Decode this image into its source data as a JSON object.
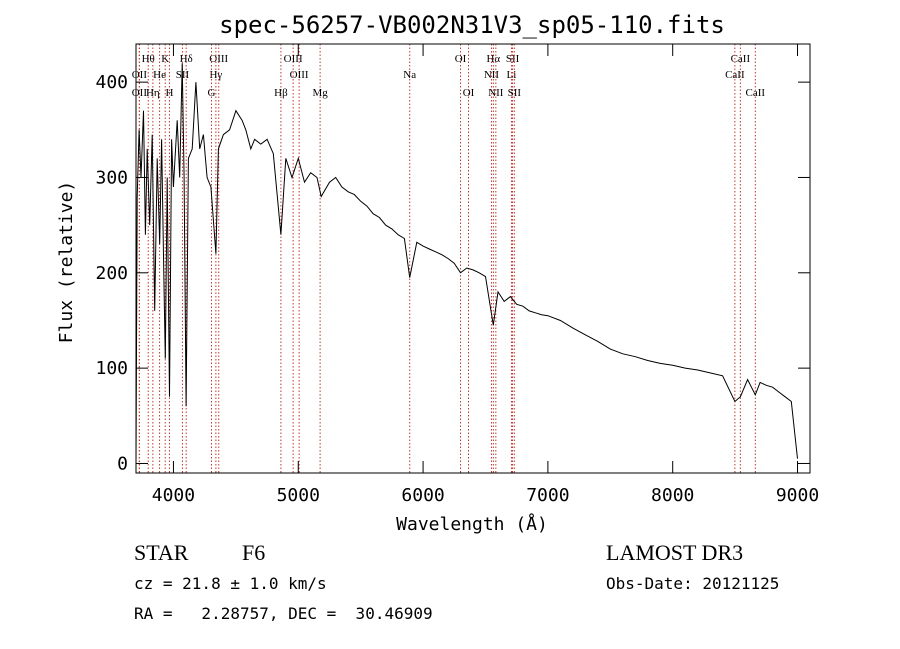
{
  "chart_data": {
    "type": "line",
    "title": "spec-56257-VB002N31V3_sp05-110.fits",
    "xlabel": "Wavelength (Å)",
    "ylabel": "Flux (relative)",
    "xlim": [
      3700,
      9100
    ],
    "ylim": [
      -10,
      440
    ],
    "xticks": [
      4000,
      5000,
      6000,
      7000,
      8000,
      9000
    ],
    "yticks": [
      0,
      100,
      200,
      300,
      400
    ],
    "grid": false,
    "series": [
      {
        "name": "flux",
        "points": [
          [
            3700,
            0
          ],
          [
            3710,
            280
          ],
          [
            3725,
            350
          ],
          [
            3740,
            300
          ],
          [
            3760,
            370
          ],
          [
            3775,
            240
          ],
          [
            3790,
            330
          ],
          [
            3810,
            250
          ],
          [
            3830,
            345
          ],
          [
            3850,
            160
          ],
          [
            3870,
            320
          ],
          [
            3890,
            230
          ],
          [
            3905,
            340
          ],
          [
            3925,
            180
          ],
          [
            3935,
            110
          ],
          [
            3950,
            300
          ],
          [
            3968,
            70
          ],
          [
            3985,
            340
          ],
          [
            4000,
            290
          ],
          [
            4030,
            360
          ],
          [
            4050,
            300
          ],
          [
            4070,
            420
          ],
          [
            4085,
            300
          ],
          [
            4101,
            60
          ],
          [
            4120,
            320
          ],
          [
            4150,
            330
          ],
          [
            4180,
            400
          ],
          [
            4210,
            330
          ],
          [
            4240,
            345
          ],
          [
            4270,
            300
          ],
          [
            4300,
            290
          ],
          [
            4340,
            220
          ],
          [
            4360,
            330
          ],
          [
            4400,
            345
          ],
          [
            4450,
            350
          ],
          [
            4500,
            370
          ],
          [
            4550,
            360
          ],
          [
            4580,
            350
          ],
          [
            4620,
            330
          ],
          [
            4650,
            340
          ],
          [
            4700,
            335
          ],
          [
            4750,
            340
          ],
          [
            4800,
            325
          ],
          [
            4861,
            240
          ],
          [
            4900,
            320
          ],
          [
            4950,
            300
          ],
          [
            5000,
            320
          ],
          [
            5050,
            295
          ],
          [
            5100,
            305
          ],
          [
            5150,
            300
          ],
          [
            5184,
            280
          ],
          [
            5250,
            295
          ],
          [
            5300,
            300
          ],
          [
            5350,
            290
          ],
          [
            5400,
            285
          ],
          [
            5450,
            282
          ],
          [
            5500,
            275
          ],
          [
            5550,
            270
          ],
          [
            5600,
            262
          ],
          [
            5650,
            258
          ],
          [
            5700,
            250
          ],
          [
            5750,
            246
          ],
          [
            5800,
            240
          ],
          [
            5850,
            236
          ],
          [
            5893,
            195
          ],
          [
            5950,
            232
          ],
          [
            6000,
            228
          ],
          [
            6050,
            225
          ],
          [
            6100,
            222
          ],
          [
            6150,
            219
          ],
          [
            6200,
            215
          ],
          [
            6250,
            210
          ],
          [
            6300,
            200
          ],
          [
            6350,
            205
          ],
          [
            6400,
            203
          ],
          [
            6450,
            200
          ],
          [
            6500,
            196
          ],
          [
            6563,
            145
          ],
          [
            6600,
            180
          ],
          [
            6650,
            170
          ],
          [
            6700,
            175
          ],
          [
            6750,
            167
          ],
          [
            6800,
            165
          ],
          [
            6850,
            160
          ],
          [
            6900,
            158
          ],
          [
            6950,
            156
          ],
          [
            7000,
            155
          ],
          [
            7100,
            150
          ],
          [
            7200,
            142
          ],
          [
            7300,
            135
          ],
          [
            7400,
            128
          ],
          [
            7500,
            120
          ],
          [
            7600,
            115
          ],
          [
            7700,
            112
          ],
          [
            7800,
            108
          ],
          [
            7900,
            105
          ],
          [
            8000,
            103
          ],
          [
            8100,
            100
          ],
          [
            8200,
            98
          ],
          [
            8300,
            95
          ],
          [
            8400,
            92
          ],
          [
            8498,
            65
          ],
          [
            8542,
            70
          ],
          [
            8600,
            88
          ],
          [
            8662,
            72
          ],
          [
            8700,
            85
          ],
          [
            8750,
            82
          ],
          [
            8800,
            80
          ],
          [
            8850,
            75
          ],
          [
            8900,
            70
          ],
          [
            8950,
            65
          ],
          [
            9000,
            5
          ]
        ]
      }
    ],
    "lines": [
      {
        "label": "Hθ",
        "wave": 3798,
        "row": 1
      },
      {
        "label": "K",
        "wave": 3934,
        "row": 1
      },
      {
        "label": "Hδ",
        "wave": 4102,
        "row": 1
      },
      {
        "label": "OIII",
        "wave": 4363,
        "row": 1
      },
      {
        "label": "OIII",
        "wave": 4959,
        "row": 1
      },
      {
        "label": "OI",
        "wave": 6300,
        "row": 1
      },
      {
        "label": "Hα",
        "wave": 6563,
        "row": 1
      },
      {
        "label": "SII",
        "wave": 6717,
        "row": 1
      },
      {
        "label": "CaII",
        "wave": 8542,
        "row": 1
      },
      {
        "label": "OII",
        "wave": 3727,
        "row": 2
      },
      {
        "label": "He",
        "wave": 3889,
        "row": 2
      },
      {
        "label": "SII",
        "wave": 4072,
        "row": 2
      },
      {
        "label": "Hγ",
        "wave": 4340,
        "row": 2
      },
      {
        "label": "OIII",
        "wave": 5007,
        "row": 2
      },
      {
        "label": "Na",
        "wave": 5893,
        "row": 2
      },
      {
        "label": "NII",
        "wave": 6548,
        "row": 2
      },
      {
        "label": "Li",
        "wave": 6708,
        "row": 2
      },
      {
        "label": "CaII",
        "wave": 8498,
        "row": 2
      },
      {
        "label": "OII",
        "wave": 3727,
        "row": 3
      },
      {
        "label": "Hη",
        "wave": 3835,
        "row": 3
      },
      {
        "label": "H",
        "wave": 3968,
        "row": 3
      },
      {
        "label": "G",
        "wave": 4305,
        "row": 3
      },
      {
        "label": "Hβ",
        "wave": 4861,
        "row": 3
      },
      {
        "label": "Mg",
        "wave": 5175,
        "row": 3
      },
      {
        "label": "OI",
        "wave": 6364,
        "row": 3
      },
      {
        "label": "NII",
        "wave": 6583,
        "row": 3
      },
      {
        "label": "SII",
        "wave": 6731,
        "row": 3
      },
      {
        "label": "CaII",
        "wave": 8662,
        "row": 3
      }
    ]
  },
  "footer": {
    "object_class": "STAR",
    "subclass": "F6",
    "survey": "LAMOST DR3",
    "redshift": "cz = 21.8 ± 1.0 km/s",
    "obs_date": "Obs-Date: 20121125",
    "coords": "RA =   2.28757, DEC =  30.46909"
  },
  "colors": {
    "line_marker": "#c0392b",
    "axis": "#000000"
  }
}
